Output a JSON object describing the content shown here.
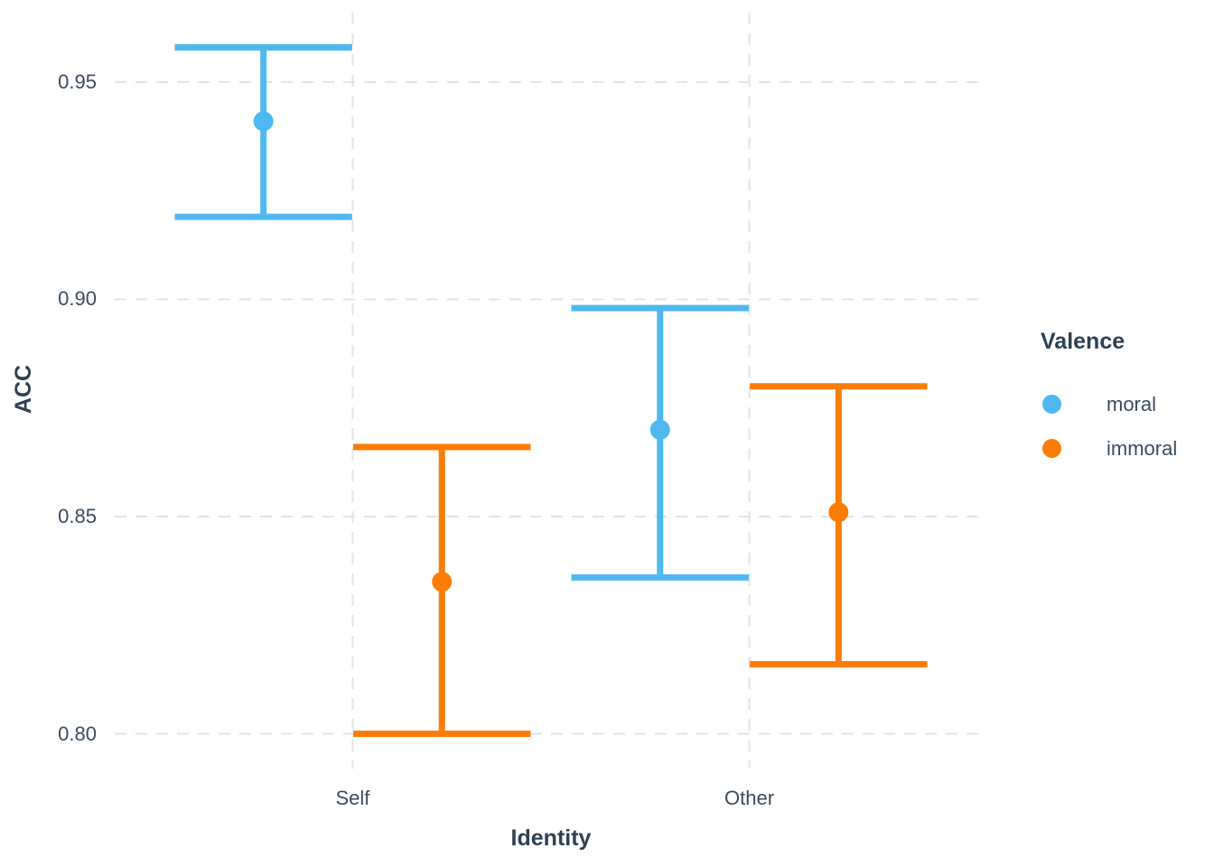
{
  "chart_data": {
    "type": "pointrange",
    "title": "",
    "xlabel": "Identity",
    "ylabel": "ACC",
    "categories": [
      "Self",
      "Other"
    ],
    "series": [
      {
        "name": "moral",
        "color": "#4FB8F1",
        "means": [
          0.941,
          0.87
        ],
        "lower": [
          0.919,
          0.836
        ],
        "upper": [
          0.958,
          0.898
        ]
      },
      {
        "name": "immoral",
        "color": "#FB7D05",
        "means": [
          0.835,
          0.851
        ],
        "lower": [
          0.8,
          0.816
        ],
        "upper": [
          0.866,
          0.88
        ]
      }
    ],
    "yticks": [
      0.8,
      0.85,
      0.9,
      0.95
    ],
    "ytick_labels": [
      "0.80",
      "0.85",
      "0.90",
      "0.95"
    ],
    "ylim": [
      0.792,
      0.966
    ],
    "grid": "dashed",
    "grid_color": "#E3E3E3",
    "background": "#ffffff",
    "legend": {
      "title": "Valence",
      "position": "right",
      "items": [
        {
          "label": "moral",
          "color": "#4FB8F1"
        },
        {
          "label": "immoral",
          "color": "#FB7D05"
        }
      ]
    },
    "text_colors": {
      "tick": "#3C4B5E",
      "title": "#2E4053"
    }
  }
}
